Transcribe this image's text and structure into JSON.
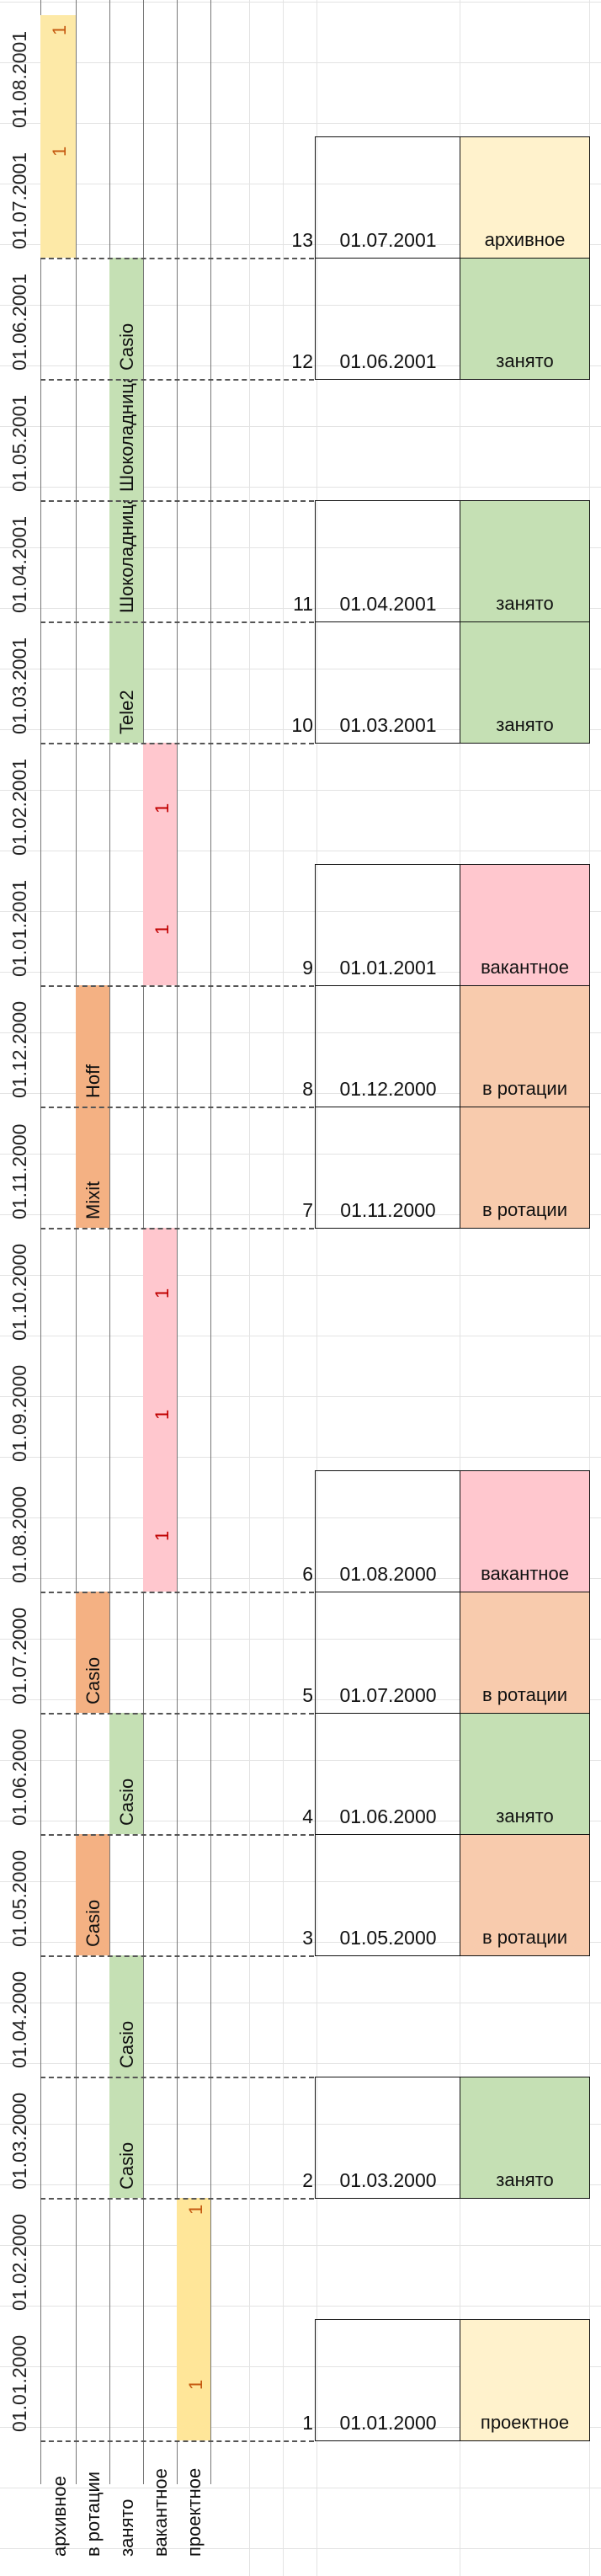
{
  "colors": {
    "archive": "#fde9a7",
    "archive_light": "#fff2cc",
    "rotation": "#f4b183",
    "rotation_light": "#f8cbad",
    "busy": "#c5e0b4",
    "vacant": "#ffc7ce",
    "project": "#ffe699",
    "project_light": "#fff2cc",
    "red_text": "#c00000",
    "orange_text": "#c55a11"
  },
  "dates": [
    "01.01.2000",
    "01.02.2000",
    "01.03.2000",
    "01.04.2000",
    "01.05.2000",
    "01.06.2000",
    "01.07.2000",
    "01.08.2000",
    "01.09.2000",
    "01.10.2000",
    "01.11.2000",
    "01.12.2000",
    "01.01.2001",
    "01.02.2001",
    "01.03.2001",
    "01.04.2001",
    "01.05.2001",
    "01.06.2001",
    "01.07.2001",
    "01.08.2001"
  ],
  "categories": [
    "архивное",
    "в ротации",
    "занято",
    "вакантное",
    "проектное"
  ],
  "timeline": {
    "archive": [
      {
        "from": 18,
        "to": 20,
        "text": "1"
      },
      {
        "from": 19,
        "to": 20,
        "text": "1"
      }
    ],
    "rotation": [
      {
        "text": "Casio"
      },
      {
        "text": "Casio"
      },
      {
        "text": "Mixit"
      },
      {
        "text": "Hoff"
      }
    ],
    "busy": [
      {
        "text": "Casio"
      },
      {
        "text": "Casio"
      },
      {
        "text": "Casio"
      },
      {
        "text": "Tele2"
      },
      {
        "text": "Шоколадница"
      },
      {
        "text": "Шоколадница"
      },
      {
        "text": "Casio"
      }
    ],
    "vacant": [
      {
        "text": "1"
      },
      {
        "text": "1"
      },
      {
        "text": "1"
      },
      {
        "text": "1"
      },
      {
        "text": "1"
      }
    ],
    "project": [
      {
        "text": "1"
      },
      {
        "text": "1"
      }
    ]
  },
  "table": [
    {
      "n": "1",
      "date": "01.01.2000",
      "status": "проектное",
      "kind": "project"
    },
    {
      "n": "2",
      "date": "01.03.2000",
      "status": "занято",
      "kind": "busy"
    },
    {
      "n": "3",
      "date": "01.05.2000",
      "status": "в ротации",
      "kind": "rotation"
    },
    {
      "n": "4",
      "date": "01.06.2000",
      "status": "занято",
      "kind": "busy"
    },
    {
      "n": "5",
      "date": "01.07.2000",
      "status": "в ротации",
      "kind": "rotation"
    },
    {
      "n": "6",
      "date": "01.08.2000",
      "status": "вакантное",
      "kind": "vacant"
    },
    {
      "n": "7",
      "date": "01.11.2000",
      "status": "в ротации",
      "kind": "rotation"
    },
    {
      "n": "8",
      "date": "01.12.2000",
      "status": "в ротации",
      "kind": "rotation"
    },
    {
      "n": "9",
      "date": "01.01.2001",
      "status": "вакантное",
      "kind": "vacant"
    },
    {
      "n": "10",
      "date": "01.03.2001",
      "status": "занято",
      "kind": "busy"
    },
    {
      "n": "11",
      "date": "01.04.2001",
      "status": "занято",
      "kind": "busy"
    },
    {
      "n": "12",
      "date": "01.06.2001",
      "status": "занято",
      "kind": "busy"
    },
    {
      "n": "13",
      "date": "01.07.2001",
      "status": "архивное",
      "kind": "archive"
    }
  ]
}
